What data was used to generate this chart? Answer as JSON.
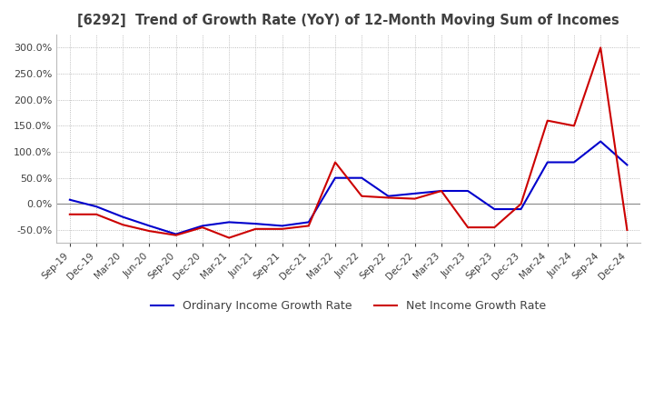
{
  "title": "[6292]  Trend of Growth Rate (YoY) of 12-Month Moving Sum of Incomes",
  "title_color": "#404040",
  "background_color": "#ffffff",
  "grid_color": "#aaaaaa",
  "ylim": [
    -75,
    325
  ],
  "yticks": [
    -50,
    0,
    50,
    100,
    150,
    200,
    250,
    300
  ],
  "x_labels": [
    "Sep-19",
    "Dec-19",
    "Mar-20",
    "Jun-20",
    "Sep-20",
    "Dec-20",
    "Mar-21",
    "Jun-21",
    "Sep-21",
    "Dec-21",
    "Mar-22",
    "Jun-22",
    "Sep-22",
    "Dec-22",
    "Mar-23",
    "Jun-23",
    "Sep-23",
    "Dec-23",
    "Mar-24",
    "Jun-24",
    "Sep-24",
    "Dec-24"
  ],
  "ordinary_income": [
    8,
    -5,
    -25,
    -42,
    -58,
    -42,
    -35,
    -38,
    -42,
    -35,
    50,
    50,
    15,
    20,
    25,
    25,
    -10,
    -10,
    80,
    80,
    120,
    75
  ],
  "net_income": [
    -20,
    -20,
    -40,
    -52,
    -60,
    -45,
    -65,
    -48,
    -48,
    -42,
    80,
    15,
    12,
    10,
    25,
    -45,
    -45,
    0,
    160,
    150,
    300,
    -50
  ],
  "ordinary_color": "#0000cc",
  "net_color": "#cc0000",
  "line_width": 1.5,
  "legend_ordinary": "Ordinary Income Growth Rate",
  "legend_net": "Net Income Growth Rate"
}
